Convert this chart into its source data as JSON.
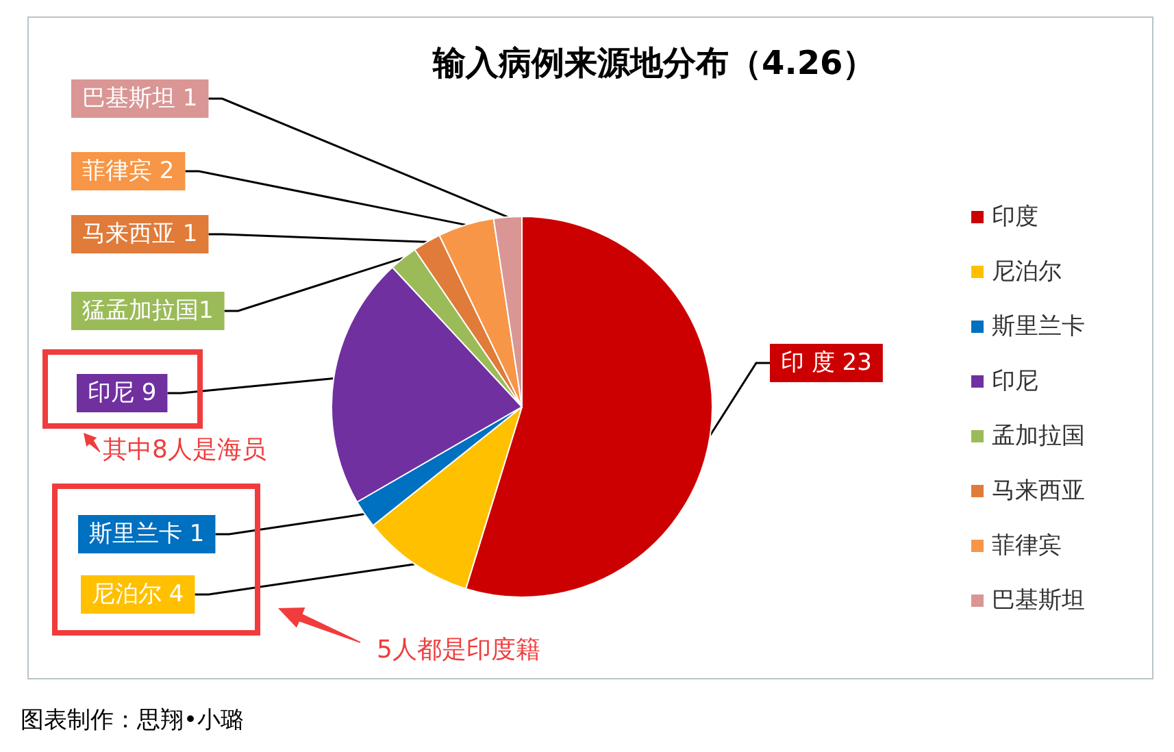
{
  "chart_data": {
    "type": "pie",
    "title": "输入病例来源地分布（4.26）",
    "categories": [
      "印度",
      "尼泊尔",
      "斯里兰卡",
      "印尼",
      "孟加拉国",
      "马来西亚",
      "菲律宾",
      "巴基斯坦"
    ],
    "values": [
      23,
      4,
      1,
      9,
      1,
      1,
      2,
      1
    ],
    "colors": [
      "#cc0000",
      "#ffc000",
      "#0070c0",
      "#7030a0",
      "#9bbb59",
      "#e07b39",
      "#f79646",
      "#d99694"
    ],
    "value_labels": [
      "印 度 23",
      "尼泊尔 4",
      "斯里兰卡 1",
      "印尼 9",
      "猛孟加拉国1",
      "马来西亚 1",
      "菲律宾 2",
      "巴基斯坦 1"
    ],
    "legend": "right",
    "annotations": [
      "其中8人是海员",
      "5人都是印度籍",
      "图表制作：思翔•小璐"
    ]
  }
}
